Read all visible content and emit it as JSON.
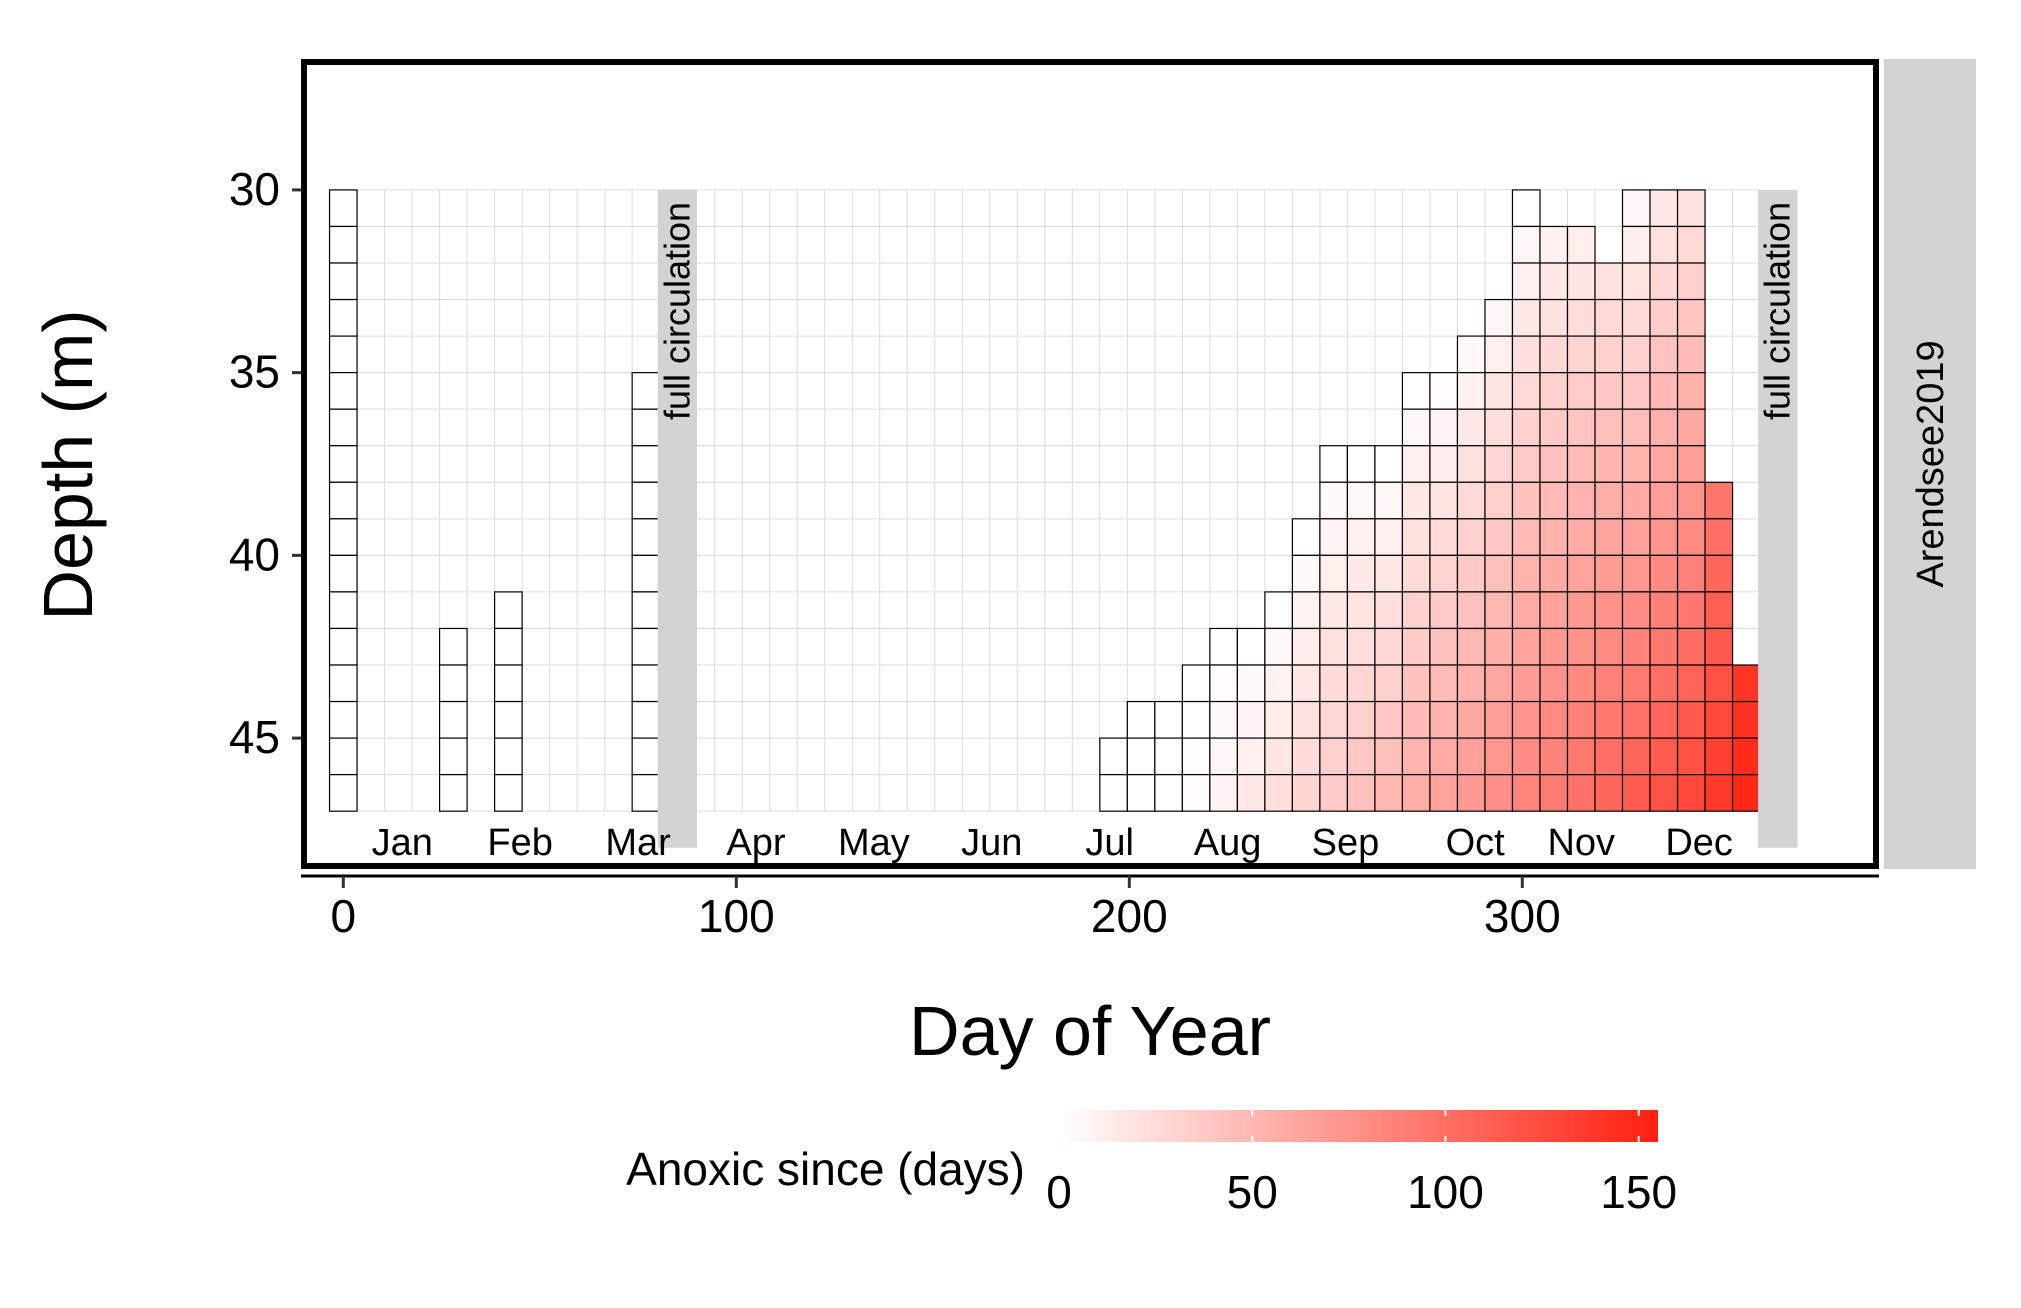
{
  "chart_data": {
    "type": "heatmap",
    "title": "",
    "xlabel": "Day of Year",
    "ylabel": "Depth (m)",
    "xlim": [
      -10,
      390
    ],
    "ylim": [
      48.5,
      26.5
    ],
    "x_ticks": [
      0,
      100,
      200,
      300
    ],
    "y_ticks": [
      30,
      35,
      40,
      45
    ],
    "grid": true,
    "cell": {
      "day_width": 7,
      "depth_height": 1
    },
    "months": [
      {
        "label": "Jan",
        "x": 15
      },
      {
        "label": "Feb",
        "x": 45
      },
      {
        "label": "Mar",
        "x": 75
      },
      {
        "label": "Apr",
        "x": 105
      },
      {
        "label": "May",
        "x": 135
      },
      {
        "label": "Jun",
        "x": 165
      },
      {
        "label": "Jul",
        "x": 195
      },
      {
        "label": "Aug",
        "x": 225
      },
      {
        "label": "Sep",
        "x": 255
      },
      {
        "label": "Oct",
        "x": 288
      },
      {
        "label": "Nov",
        "x": 315
      },
      {
        "label": "Dec",
        "x": 345
      }
    ],
    "circulation_events": [
      {
        "label": "full circulation",
        "day_start": 80,
        "day_end": 90
      },
      {
        "label": "full circulation",
        "day_start": 360,
        "day_end": 370
      }
    ],
    "facet_label": "Arendsee2019",
    "legend": {
      "title": "Anoxic since (days)",
      "min": 0,
      "max": 155,
      "ticks": [
        0,
        50,
        100,
        150
      ],
      "low_color": "#ffffff",
      "high_color": "#ff2010",
      "position": "bottom"
    },
    "columns": [
      {
        "day": 0,
        "top_depth": 30.5,
        "anoxic_since_top": 0,
        "anoxic_since_bottom": 0
      },
      {
        "day": 28,
        "top_depth": 42.5,
        "anoxic_since_top": 0,
        "anoxic_since_bottom": 0
      },
      {
        "day": 42,
        "top_depth": 41.5,
        "anoxic_since_top": 0,
        "anoxic_since_bottom": 0
      },
      {
        "day": 77,
        "top_depth": 35.5,
        "anoxic_since_top": 0,
        "anoxic_since_bottom": 0
      },
      {
        "day": 196,
        "top_depth": 45.5,
        "anoxic_since_top": 0,
        "anoxic_since_bottom": 0
      },
      {
        "day": 203,
        "top_depth": 44.5,
        "anoxic_since_top": 0,
        "anoxic_since_bottom": 0
      },
      {
        "day": 210,
        "top_depth": 44.5,
        "anoxic_since_top": 0,
        "anoxic_since_bottom": 0
      },
      {
        "day": 217,
        "top_depth": 43.5,
        "anoxic_since_top": 0,
        "anoxic_since_bottom": 2
      },
      {
        "day": 224,
        "top_depth": 42.5,
        "anoxic_since_top": 0,
        "anoxic_since_bottom": 8
      },
      {
        "day": 231,
        "top_depth": 42.5,
        "anoxic_since_top": 0,
        "anoxic_since_bottom": 15
      },
      {
        "day": 238,
        "top_depth": 41.5,
        "anoxic_since_top": 0,
        "anoxic_since_bottom": 22
      },
      {
        "day": 245,
        "top_depth": 39.5,
        "anoxic_since_top": 0,
        "anoxic_since_bottom": 29
      },
      {
        "day": 252,
        "top_depth": 37.5,
        "anoxic_since_top": 0,
        "anoxic_since_bottom": 36
      },
      {
        "day": 259,
        "top_depth": 37.5,
        "anoxic_since_top": 0,
        "anoxic_since_bottom": 43
      },
      {
        "day": 266,
        "top_depth": 37.5,
        "anoxic_since_top": 0,
        "anoxic_since_bottom": 50
      },
      {
        "day": 273,
        "top_depth": 35.5,
        "anoxic_since_top": 0,
        "anoxic_since_bottom": 57
      },
      {
        "day": 280,
        "top_depth": 35.5,
        "anoxic_since_top": 2,
        "anoxic_since_bottom": 64
      },
      {
        "day": 287,
        "top_depth": 34.5,
        "anoxic_since_top": 4,
        "anoxic_since_bottom": 71
      },
      {
        "day": 294,
        "top_depth": 33.5,
        "anoxic_since_top": 6,
        "anoxic_since_bottom": 78
      },
      {
        "day": 301,
        "top_depth": 30.5,
        "anoxic_since_top": 0,
        "anoxic_since_bottom": 85
      },
      {
        "day": 308,
        "top_depth": 31.5,
        "anoxic_since_top": 10,
        "anoxic_since_bottom": 92
      },
      {
        "day": 315,
        "top_depth": 31.5,
        "anoxic_since_top": 12,
        "anoxic_since_bottom": 99
      },
      {
        "day": 322,
        "top_depth": 32.5,
        "anoxic_since_top": 20,
        "anoxic_since_bottom": 106
      },
      {
        "day": 329,
        "top_depth": 30.5,
        "anoxic_since_top": 5,
        "anoxic_since_bottom": 113
      },
      {
        "day": 336,
        "top_depth": 30.5,
        "anoxic_since_top": 15,
        "anoxic_since_bottom": 120
      },
      {
        "day": 343,
        "top_depth": 30.5,
        "anoxic_since_top": 20,
        "anoxic_since_bottom": 128
      },
      {
        "day": 350,
        "top_depth": 38.5,
        "anoxic_since_top": 95,
        "anoxic_since_bottom": 137
      },
      {
        "day": 357,
        "top_depth": 43.5,
        "anoxic_since_top": 140,
        "anoxic_since_bottom": 150
      }
    ]
  }
}
